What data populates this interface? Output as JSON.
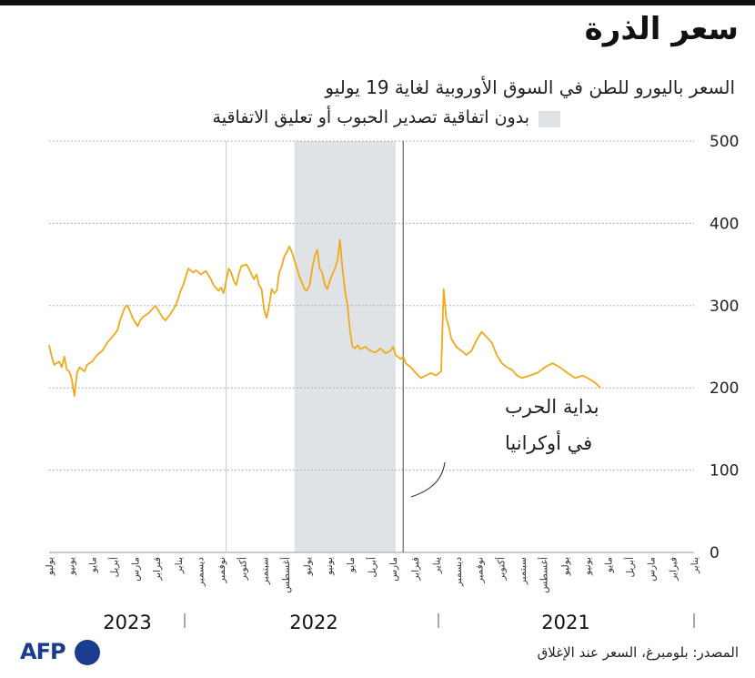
{
  "header": {
    "title": "سعر الذرة",
    "subtitle": "السعر باليورو للطن في السوق الأوروبية لغاية 19 يوليو"
  },
  "legend": {
    "label": "بدون اتفاقية تصدير الحبوب أو تعليق الاتفاقية",
    "color": "#dfe3e5"
  },
  "annotation": {
    "line1": "بداية الحرب",
    "line2": "في أوكرانيا"
  },
  "footer": {
    "logo": "AFP",
    "source": "المصدر: بلومبرغ، السعر عند الإغلاق"
  },
  "chart_data": {
    "type": "line",
    "title": "سعر الذرة",
    "ylabel": "السعر باليورو للطن",
    "ylim": [
      0,
      500
    ],
    "yticks": [
      0,
      100,
      200,
      300,
      400,
      500
    ],
    "line_color": "#f0a91c",
    "time_axis_start": 2021.0,
    "time_axis_end": 2023.55,
    "month_labels": [
      "يوليو",
      "يونيو",
      "مايو",
      "أبريل",
      "مارس",
      "فبراير",
      "يناير",
      "ديسمبر",
      "نوفمبر",
      "أكتوبر",
      "سبتمبر",
      "أغسطس",
      "يوليو",
      "يونيو",
      "مايو",
      "أبريل",
      "مارس",
      "فبراير",
      "يناير",
      "ديسمبر",
      "نوفمبر",
      "أكتوبر",
      "سبتمبر",
      "أغسطس",
      "يوليو",
      "يونيو",
      "مايو",
      "أبريل",
      "مارس",
      "فبراير",
      "يناير"
    ],
    "years": [
      "2023",
      "2022",
      "2021"
    ],
    "shaded_period": [
      2022.18,
      2022.58
    ],
    "event_line": 2022.15,
    "vertical_marker": 2022.85,
    "series": [
      {
        "name": "سعر الذرة",
        "points": [
          [
            2023.55,
            252
          ],
          [
            2023.54,
            238
          ],
          [
            2023.53,
            228
          ],
          [
            2023.51,
            232
          ],
          [
            2023.5,
            225
          ],
          [
            2023.49,
            238
          ],
          [
            2023.48,
            222
          ],
          [
            2023.47,
            220
          ],
          [
            2023.46,
            210
          ],
          [
            2023.45,
            190
          ],
          [
            2023.44,
            218
          ],
          [
            2023.43,
            225
          ],
          [
            2023.41,
            220
          ],
          [
            2023.4,
            228
          ],
          [
            2023.38,
            232
          ],
          [
            2023.36,
            240
          ],
          [
            2023.34,
            245
          ],
          [
            2023.32,
            255
          ],
          [
            2023.3,
            262
          ],
          [
            2023.28,
            270
          ],
          [
            2023.27,
            282
          ],
          [
            2023.26,
            290
          ],
          [
            2023.25,
            298
          ],
          [
            2023.24,
            300
          ],
          [
            2023.23,
            293
          ],
          [
            2023.22,
            285
          ],
          [
            2023.21,
            280
          ],
          [
            2023.2,
            275
          ],
          [
            2023.19,
            282
          ],
          [
            2023.18,
            286
          ],
          [
            2023.16,
            290
          ],
          [
            2023.15,
            293
          ],
          [
            2023.13,
            300
          ],
          [
            2023.12,
            295
          ],
          [
            2023.1,
            285
          ],
          [
            2023.09,
            282
          ],
          [
            2023.07,
            290
          ],
          [
            2023.05,
            300
          ],
          [
            2023.04,
            308
          ],
          [
            2023.03,
            318
          ],
          [
            2023.02,
            325
          ],
          [
            2023.01,
            335
          ],
          [
            2023.0,
            345
          ],
          [
            2022.98,
            340
          ],
          [
            2022.97,
            343
          ],
          [
            2022.95,
            338
          ],
          [
            2022.93,
            342
          ],
          [
            2022.91,
            332
          ],
          [
            2022.9,
            325
          ],
          [
            2022.88,
            318
          ],
          [
            2022.87,
            322
          ],
          [
            2022.86,
            315
          ],
          [
            2022.85,
            330
          ],
          [
            2022.84,
            345
          ],
          [
            2022.83,
            340
          ],
          [
            2022.82,
            330
          ],
          [
            2022.81,
            325
          ],
          [
            2022.8,
            338
          ],
          [
            2022.79,
            348
          ],
          [
            2022.77,
            350
          ],
          [
            2022.76,
            345
          ],
          [
            2022.75,
            338
          ],
          [
            2022.74,
            332
          ],
          [
            2022.73,
            338
          ],
          [
            2022.72,
            325
          ],
          [
            2022.71,
            320
          ],
          [
            2022.7,
            295
          ],
          [
            2022.69,
            285
          ],
          [
            2022.68,
            300
          ],
          [
            2022.67,
            320
          ],
          [
            2022.66,
            315
          ],
          [
            2022.65,
            318
          ],
          [
            2022.64,
            340
          ],
          [
            2022.63,
            348
          ],
          [
            2022.62,
            360
          ],
          [
            2022.61,
            365
          ],
          [
            2022.6,
            372
          ],
          [
            2022.59,
            365
          ],
          [
            2022.58,
            355
          ],
          [
            2022.57,
            345
          ],
          [
            2022.56,
            335
          ],
          [
            2022.55,
            328
          ],
          [
            2022.54,
            320
          ],
          [
            2022.53,
            318
          ],
          [
            2022.52,
            325
          ],
          [
            2022.51,
            345
          ],
          [
            2022.5,
            360
          ],
          [
            2022.49,
            368
          ],
          [
            2022.48,
            345
          ],
          [
            2022.47,
            340
          ],
          [
            2022.46,
            325
          ],
          [
            2022.45,
            320
          ],
          [
            2022.44,
            330
          ],
          [
            2022.43,
            338
          ],
          [
            2022.42,
            345
          ],
          [
            2022.41,
            355
          ],
          [
            2022.4,
            380
          ],
          [
            2022.39,
            345
          ],
          [
            2022.38,
            318
          ],
          [
            2022.37,
            300
          ],
          [
            2022.36,
            268
          ],
          [
            2022.35,
            250
          ],
          [
            2022.34,
            248
          ],
          [
            2022.33,
            252
          ],
          [
            2022.32,
            247
          ],
          [
            2022.3,
            250
          ],
          [
            2022.28,
            245
          ],
          [
            2022.26,
            243
          ],
          [
            2022.24,
            248
          ],
          [
            2022.22,
            242
          ],
          [
            2022.2,
            245
          ],
          [
            2022.19,
            250
          ],
          [
            2022.18,
            240
          ],
          [
            2022.16,
            235
          ],
          [
            2022.15,
            238
          ],
          [
            2022.14,
            230
          ],
          [
            2022.12,
            225
          ],
          [
            2022.1,
            218
          ],
          [
            2022.08,
            212
          ],
          [
            2022.06,
            215
          ],
          [
            2022.04,
            218
          ],
          [
            2022.02,
            215
          ],
          [
            2022.0,
            220
          ],
          [
            2021.99,
            320
          ],
          [
            2021.98,
            285
          ],
          [
            2021.97,
            275
          ],
          [
            2021.96,
            260
          ],
          [
            2021.94,
            250
          ],
          [
            2021.92,
            245
          ],
          [
            2021.9,
            240
          ],
          [
            2021.88,
            245
          ],
          [
            2021.86,
            258
          ],
          [
            2021.84,
            268
          ],
          [
            2021.82,
            262
          ],
          [
            2021.8,
            255
          ],
          [
            2021.78,
            240
          ],
          [
            2021.76,
            230
          ],
          [
            2021.74,
            225
          ],
          [
            2021.72,
            222
          ],
          [
            2021.7,
            215
          ],
          [
            2021.68,
            212
          ],
          [
            2021.65,
            215
          ],
          [
            2021.62,
            218
          ],
          [
            2021.59,
            225
          ],
          [
            2021.56,
            230
          ],
          [
            2021.53,
            225
          ],
          [
            2021.5,
            218
          ],
          [
            2021.47,
            212
          ],
          [
            2021.44,
            215
          ],
          [
            2021.41,
            210
          ],
          [
            2021.39,
            206
          ],
          [
            2021.37,
            200
          ]
        ]
      }
    ]
  }
}
